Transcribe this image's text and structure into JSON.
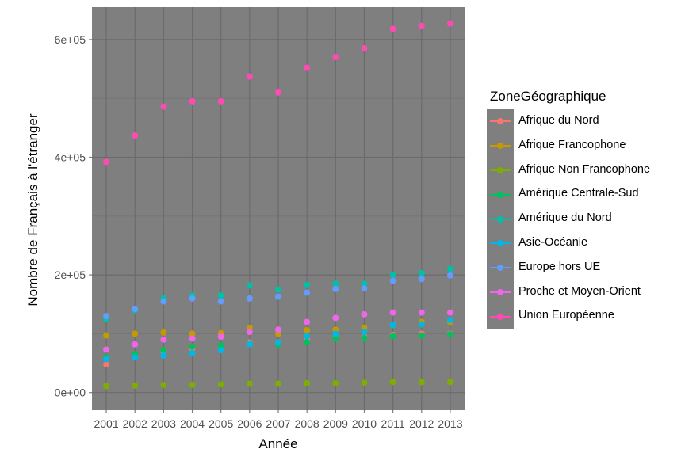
{
  "chart_data": {
    "type": "scatter",
    "xlabel": "Année",
    "ylabel": "Nombre de Français à l'étranger",
    "x": [
      "2001",
      "2002",
      "2003",
      "2004",
      "2005",
      "2006",
      "2007",
      "2008",
      "2009",
      "2010",
      "2011",
      "2012",
      "2013"
    ],
    "ylim": [
      -30000,
      655000
    ],
    "y_ticks": [
      0,
      200000,
      400000,
      600000
    ],
    "y_tick_labels": [
      "0e+00",
      "2e+05",
      "4e+05",
      "6e+05"
    ],
    "grid": true,
    "legend_title": "ZoneGéographique",
    "legend_position": "right",
    "series": [
      {
        "name": "Afrique du Nord",
        "color": "#F8766D",
        "values": [
          48000,
          62000,
          70000,
          75000,
          78000,
          85000,
          85000,
          90000,
          93000,
          95000,
          98000,
          100000,
          100000
        ]
      },
      {
        "name": "Afrique Francophone",
        "color": "#C49A00",
        "values": [
          97000,
          100000,
          102000,
          100000,
          101000,
          110000,
          100000,
          106000,
          107000,
          110000,
          115000,
          120000,
          120000
        ]
      },
      {
        "name": "Afrique Non Francophone",
        "color": "#7CAE00",
        "values": [
          11000,
          12000,
          13000,
          13000,
          14000,
          15000,
          15000,
          16000,
          16000,
          17000,
          18000,
          18000,
          18000
        ]
      },
      {
        "name": "Amérique Centrale-Sud",
        "color": "#00C25A",
        "values": [
          60000,
          65000,
          72000,
          78000,
          80000,
          83000,
          82000,
          86000,
          92000,
          93000,
          96000,
          97000,
          99000
        ]
      },
      {
        "name": "Amérique du Nord",
        "color": "#00C1A7",
        "values": [
          125000,
          140000,
          160000,
          165000,
          165000,
          182000,
          175000,
          183000,
          185000,
          185000,
          200000,
          203000,
          210000
        ]
      },
      {
        "name": "Asie-Océanie",
        "color": "#00B8E5",
        "values": [
          57000,
          60000,
          63000,
          67000,
          72000,
          82000,
          85000,
          96000,
          100000,
          103000,
          115000,
          116000,
          123000
        ]
      },
      {
        "name": "Europe hors UE",
        "color": "#619CFF",
        "values": [
          130000,
          142000,
          155000,
          160000,
          155000,
          160000,
          163000,
          170000,
          176000,
          177000,
          190000,
          193000,
          199000
        ]
      },
      {
        "name": "Proche et Moyen-Orient",
        "color": "#F066EA",
        "values": [
          73000,
          82000,
          90000,
          92000,
          95000,
          103000,
          107000,
          120000,
          127000,
          133000,
          136000,
          136000,
          136000
        ]
      },
      {
        "name": "Union Européenne",
        "color": "#FF4AB4",
        "values": [
          392000,
          437000,
          486000,
          495000,
          495000,
          537000,
          510000,
          552000,
          570000,
          585000,
          618000,
          623000,
          627000
        ]
      }
    ]
  }
}
